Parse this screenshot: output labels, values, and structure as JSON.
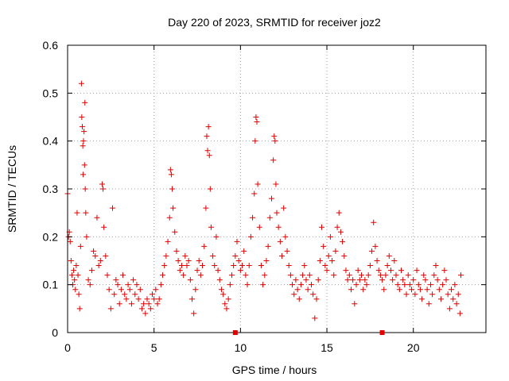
{
  "chart_data": {
    "type": "scatter",
    "title": "Day 220 of 2023, SRMTID for receiver joz2",
    "xlabel": "GPS time / hours",
    "ylabel": "SRMTID / TECUs",
    "xlim": [
      0,
      24.2
    ],
    "ylim": [
      0,
      0.6
    ],
    "xticks": [
      0,
      5,
      10,
      15,
      20
    ],
    "xtick_labels": [
      "0",
      "5",
      "10",
      "15",
      "20"
    ],
    "yticks": [
      0,
      0.1,
      0.2,
      0.3,
      0.4,
      0.5,
      0.6
    ],
    "ytick_labels": [
      "0",
      "0.1",
      "0.2",
      "0.3",
      "0.4",
      "0.5",
      "0.6"
    ],
    "grid": true,
    "marker": "+",
    "color": "#e00000",
    "series": [
      {
        "name": "SRMTID",
        "points": [
          [
            0.0,
            0.29
          ],
          [
            0.05,
            0.2
          ],
          [
            0.1,
            0.21
          ],
          [
            0.15,
            0.19
          ],
          [
            0.2,
            0.15
          ],
          [
            0.25,
            0.12
          ],
          [
            0.3,
            0.1
          ],
          [
            0.35,
            0.13
          ],
          [
            0.4,
            0.11
          ],
          [
            0.45,
            0.09
          ],
          [
            0.5,
            0.14
          ],
          [
            0.55,
            0.25
          ],
          [
            0.6,
            0.12
          ],
          [
            0.65,
            0.08
          ],
          [
            0.7,
            0.05
          ],
          [
            0.75,
            0.18
          ],
          [
            0.8,
            0.52
          ],
          [
            0.82,
            0.45
          ],
          [
            0.85,
            0.43
          ],
          [
            0.88,
            0.39
          ],
          [
            0.9,
            0.33
          ],
          [
            0.92,
            0.4
          ],
          [
            0.95,
            0.42
          ],
          [
            0.98,
            0.35
          ],
          [
            1.0,
            0.48
          ],
          [
            1.02,
            0.3
          ],
          [
            1.05,
            0.25
          ],
          [
            1.1,
            0.2
          ],
          [
            1.2,
            0.11
          ],
          [
            1.3,
            0.1
          ],
          [
            1.4,
            0.13
          ],
          [
            1.5,
            0.17
          ],
          [
            1.6,
            0.16
          ],
          [
            1.7,
            0.24
          ],
          [
            1.8,
            0.14
          ],
          [
            1.9,
            0.15
          ],
          [
            2.0,
            0.31
          ],
          [
            2.05,
            0.3
          ],
          [
            2.1,
            0.22
          ],
          [
            2.2,
            0.16
          ],
          [
            2.3,
            0.12
          ],
          [
            2.4,
            0.09
          ],
          [
            2.5,
            0.05
          ],
          [
            2.6,
            0.26
          ],
          [
            2.7,
            0.08
          ],
          [
            2.8,
            0.11
          ],
          [
            2.9,
            0.1
          ],
          [
            3.0,
            0.06
          ],
          [
            3.1,
            0.09
          ],
          [
            3.2,
            0.12
          ],
          [
            3.3,
            0.08
          ],
          [
            3.4,
            0.07
          ],
          [
            3.5,
            0.1
          ],
          [
            3.6,
            0.09
          ],
          [
            3.7,
            0.06
          ],
          [
            3.8,
            0.11
          ],
          [
            3.9,
            0.08
          ],
          [
            4.0,
            0.1
          ],
          [
            4.1,
            0.07
          ],
          [
            4.2,
            0.09
          ],
          [
            4.3,
            0.05
          ],
          [
            4.4,
            0.06
          ],
          [
            4.5,
            0.04
          ],
          [
            4.6,
            0.07
          ],
          [
            4.7,
            0.06
          ],
          [
            4.8,
            0.05
          ],
          [
            4.9,
            0.08
          ],
          [
            5.0,
            0.07
          ],
          [
            5.1,
            0.09
          ],
          [
            5.2,
            0.06
          ],
          [
            5.3,
            0.07
          ],
          [
            5.4,
            0.1
          ],
          [
            5.5,
            0.12
          ],
          [
            5.6,
            0.14
          ],
          [
            5.7,
            0.16
          ],
          [
            5.8,
            0.19
          ],
          [
            5.9,
            0.24
          ],
          [
            5.95,
            0.34
          ],
          [
            6.0,
            0.33
          ],
          [
            6.05,
            0.3
          ],
          [
            6.1,
            0.26
          ],
          [
            6.2,
            0.21
          ],
          [
            6.3,
            0.17
          ],
          [
            6.4,
            0.15
          ],
          [
            6.5,
            0.13
          ],
          [
            6.6,
            0.14
          ],
          [
            6.7,
            0.12
          ],
          [
            6.8,
            0.16
          ],
          [
            6.9,
            0.14
          ],
          [
            7.0,
            0.15
          ],
          [
            7.1,
            0.11
          ],
          [
            7.2,
            0.07
          ],
          [
            7.3,
            0.04
          ],
          [
            7.4,
            0.09
          ],
          [
            7.5,
            0.13
          ],
          [
            7.6,
            0.15
          ],
          [
            7.7,
            0.12
          ],
          [
            7.8,
            0.14
          ],
          [
            7.9,
            0.18
          ],
          [
            8.0,
            0.26
          ],
          [
            8.05,
            0.41
          ],
          [
            8.1,
            0.38
          ],
          [
            8.15,
            0.43
          ],
          [
            8.2,
            0.37
          ],
          [
            8.25,
            0.3
          ],
          [
            8.3,
            0.22
          ],
          [
            8.4,
            0.16
          ],
          [
            8.5,
            0.14
          ],
          [
            8.6,
            0.2
          ],
          [
            8.7,
            0.13
          ],
          [
            8.8,
            0.11
          ],
          [
            8.9,
            0.09
          ],
          [
            9.0,
            0.08
          ],
          [
            9.1,
            0.06
          ],
          [
            9.2,
            0.05
          ],
          [
            9.3,
            0.07
          ],
          [
            9.4,
            0.1
          ],
          [
            9.5,
            0.12
          ],
          [
            9.6,
            0.14
          ],
          [
            9.7,
            0.16
          ],
          [
            9.8,
            0.19
          ],
          [
            9.9,
            0.15
          ],
          [
            10.0,
            0.13
          ],
          [
            10.1,
            0.14
          ],
          [
            10.2,
            0.17
          ],
          [
            10.3,
            0.12
          ],
          [
            10.4,
            0.1
          ],
          [
            10.5,
            0.14
          ],
          [
            10.6,
            0.2
          ],
          [
            10.7,
            0.24
          ],
          [
            10.8,
            0.29
          ],
          [
            10.85,
            0.4
          ],
          [
            10.9,
            0.45
          ],
          [
            10.95,
            0.44
          ],
          [
            11.0,
            0.31
          ],
          [
            11.1,
            0.22
          ],
          [
            11.2,
            0.14
          ],
          [
            11.3,
            0.1
          ],
          [
            11.4,
            0.12
          ],
          [
            11.5,
            0.15
          ],
          [
            11.6,
            0.18
          ],
          [
            11.7,
            0.24
          ],
          [
            11.8,
            0.28
          ],
          [
            11.9,
            0.36
          ],
          [
            11.95,
            0.41
          ],
          [
            12.0,
            0.4
          ],
          [
            12.05,
            0.31
          ],
          [
            12.1,
            0.25
          ],
          [
            12.2,
            0.22
          ],
          [
            12.3,
            0.19
          ],
          [
            12.4,
            0.16
          ],
          [
            12.5,
            0.26
          ],
          [
            12.6,
            0.2
          ],
          [
            12.7,
            0.17
          ],
          [
            12.8,
            0.14
          ],
          [
            12.9,
            0.12
          ],
          [
            13.0,
            0.1
          ],
          [
            13.1,
            0.08
          ],
          [
            13.2,
            0.11
          ],
          [
            13.3,
            0.09
          ],
          [
            13.4,
            0.07
          ],
          [
            13.5,
            0.1
          ],
          [
            13.6,
            0.12
          ],
          [
            13.7,
            0.14
          ],
          [
            13.8,
            0.11
          ],
          [
            13.9,
            0.09
          ],
          [
            14.0,
            0.12
          ],
          [
            14.1,
            0.1
          ],
          [
            14.2,
            0.08
          ],
          [
            14.3,
            0.03
          ],
          [
            14.4,
            0.07
          ],
          [
            14.5,
            0.11
          ],
          [
            14.6,
            0.15
          ],
          [
            14.7,
            0.22
          ],
          [
            14.8,
            0.18
          ],
          [
            14.9,
            0.14
          ],
          [
            15.0,
            0.13
          ],
          [
            15.1,
            0.16
          ],
          [
            15.2,
            0.2
          ],
          [
            15.3,
            0.15
          ],
          [
            15.4,
            0.12
          ],
          [
            15.5,
            0.17
          ],
          [
            15.6,
            0.22
          ],
          [
            15.7,
            0.25
          ],
          [
            15.8,
            0.21
          ],
          [
            15.9,
            0.19
          ],
          [
            16.0,
            0.16
          ],
          [
            16.1,
            0.13
          ],
          [
            16.2,
            0.11
          ],
          [
            16.3,
            0.12
          ],
          [
            16.4,
            0.09
          ],
          [
            16.5,
            0.11
          ],
          [
            16.6,
            0.06
          ],
          [
            16.7,
            0.1
          ],
          [
            16.8,
            0.13
          ],
          [
            16.9,
            0.11
          ],
          [
            17.0,
            0.12
          ],
          [
            17.1,
            0.09
          ],
          [
            17.2,
            0.11
          ],
          [
            17.3,
            0.1
          ],
          [
            17.4,
            0.12
          ],
          [
            17.5,
            0.14
          ],
          [
            17.6,
            0.17
          ],
          [
            17.7,
            0.23
          ],
          [
            17.8,
            0.18
          ],
          [
            17.9,
            0.15
          ],
          [
            18.0,
            0.13
          ],
          [
            18.1,
            0.12
          ],
          [
            18.2,
            0.11
          ],
          [
            18.3,
            0.09
          ],
          [
            18.4,
            0.12
          ],
          [
            18.5,
            0.14
          ],
          [
            18.6,
            0.16
          ],
          [
            18.7,
            0.13
          ],
          [
            18.8,
            0.11
          ],
          [
            18.9,
            0.15
          ],
          [
            19.0,
            0.12
          ],
          [
            19.1,
            0.1
          ],
          [
            19.2,
            0.09
          ],
          [
            19.3,
            0.13
          ],
          [
            19.4,
            0.11
          ],
          [
            19.5,
            0.1
          ],
          [
            19.6,
            0.08
          ],
          [
            19.7,
            0.12
          ],
          [
            19.8,
            0.1
          ],
          [
            19.9,
            0.09
          ],
          [
            20.0,
            0.11
          ],
          [
            20.1,
            0.08
          ],
          [
            20.2,
            0.13
          ],
          [
            20.3,
            0.1
          ],
          [
            20.4,
            0.09
          ],
          [
            20.5,
            0.07
          ],
          [
            20.6,
            0.12
          ],
          [
            20.7,
            0.11
          ],
          [
            20.8,
            0.09
          ],
          [
            20.9,
            0.06
          ],
          [
            21.0,
            0.1
          ],
          [
            21.1,
            0.08
          ],
          [
            21.2,
            0.12
          ],
          [
            21.3,
            0.14
          ],
          [
            21.4,
            0.11
          ],
          [
            21.5,
            0.09
          ],
          [
            21.6,
            0.07
          ],
          [
            21.7,
            0.1
          ],
          [
            21.8,
            0.13
          ],
          [
            21.9,
            0.11
          ],
          [
            22.0,
            0.08
          ],
          [
            22.1,
            0.05
          ],
          [
            22.2,
            0.09
          ],
          [
            22.3,
            0.07
          ],
          [
            22.4,
            0.1
          ],
          [
            22.5,
            0.06
          ],
          [
            22.6,
            0.08
          ],
          [
            22.7,
            0.04
          ],
          [
            22.75,
            0.12
          ]
        ]
      }
    ],
    "axis_markers": [
      9.7,
      18.2
    ]
  }
}
